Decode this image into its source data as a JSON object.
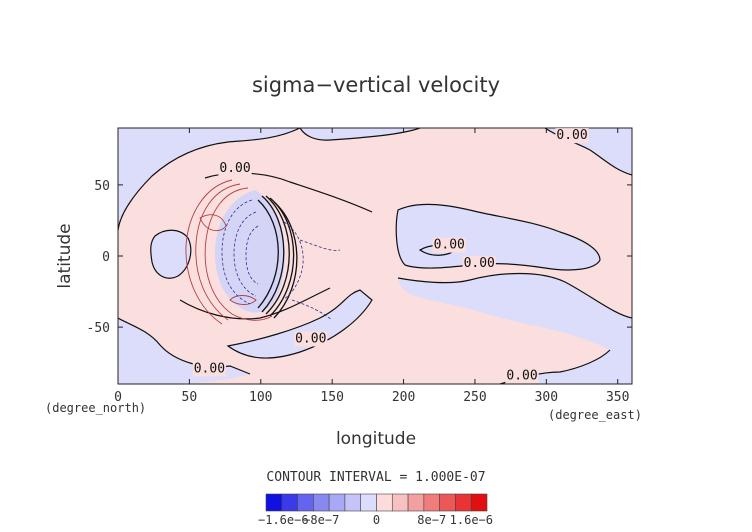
{
  "chart_data": {
    "type": "contour-map",
    "title": "sigma−vertical velocity",
    "xlabel": "longitude",
    "ylabel": "latitude",
    "x_units": "(degree_east)",
    "y_units": "(degree_north)",
    "xlim": [
      0,
      360
    ],
    "ylim": [
      -90,
      90
    ],
    "x_ticks": [
      0,
      50,
      100,
      150,
      200,
      250,
      300,
      350
    ],
    "y_ticks": [
      -50,
      0,
      50
    ],
    "contour_interval_text": "CONTOUR INTERVAL = 1.000E-07",
    "contour_labels": [
      {
        "text": "0.00",
        "lon": 82,
        "lat": 62
      },
      {
        "text": "0.00",
        "lon": 318,
        "lat": 85
      },
      {
        "text": "0.00",
        "lon": 232,
        "lat": 8
      },
      {
        "text": "0.00",
        "lon": 253,
        "lat": -5
      },
      {
        "text": "0.00",
        "lon": 135,
        "lat": -58
      },
      {
        "text": "0.00",
        "lon": 64,
        "lat": -79
      },
      {
        "text": "0.00",
        "lon": 283,
        "lat": -84
      }
    ],
    "colorbar": {
      "colors": [
        "#1010e0",
        "#3a3aea",
        "#6464ee",
        "#8888f0",
        "#a8a8f4",
        "#c4c4f8",
        "#dcdcfc",
        "#fcdcdc",
        "#f8c0c0",
        "#f4a0a0",
        "#f07c7c",
        "#ec5858",
        "#e83434",
        "#e01010"
      ],
      "tick_labels": [
        "−1.6e−6",
        "−8e−7",
        "0",
        "8e−7",
        "1.6e−6"
      ]
    },
    "colors": {
      "positive_fill": "#fbdede",
      "negative_fill": "#dcdcfb",
      "contour_line": "#111111",
      "positive_line": "#b04040",
      "negative_line": "#303090"
    }
  }
}
